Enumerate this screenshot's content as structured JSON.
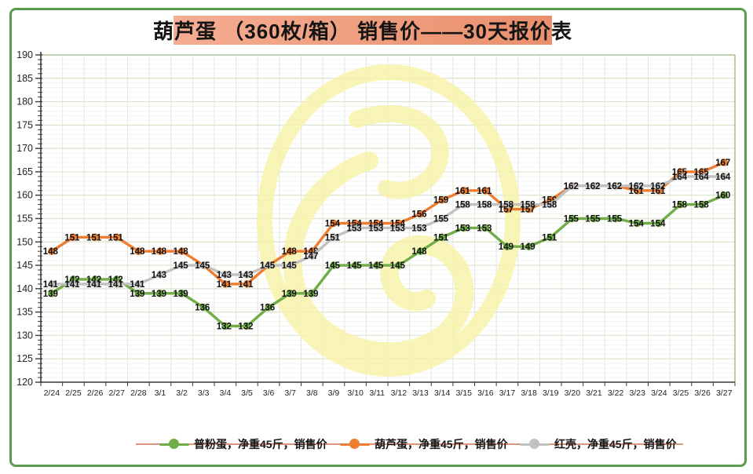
{
  "title": "葫芦蛋 （360枚/箱） 销售价——30天报价表",
  "chart_data": {
    "type": "line",
    "x": [
      "2/24",
      "2/25",
      "2/26",
      "2/27",
      "2/28",
      "3/1",
      "3/2",
      "3/3",
      "3/4",
      "3/5",
      "3/6",
      "3/7",
      "3/8",
      "3/9",
      "3/10",
      "3/11",
      "3/12",
      "3/13",
      "3/14",
      "3/15",
      "3/16",
      "3/17",
      "3/18",
      "3/19",
      "3/20",
      "3/21",
      "3/22",
      "3/23",
      "3/24",
      "3/25",
      "3/26",
      "3/27"
    ],
    "ylim": [
      120,
      190
    ],
    "ytick_step": 5,
    "grid": true,
    "data_labels": true,
    "legend_position": "bottom",
    "series": [
      {
        "name": "普粉蛋，净重45斤，销售价",
        "color": "#70ad47",
        "values": [
          139,
          142,
          142,
          142,
          139,
          139,
          139,
          136,
          132,
          132,
          136,
          139,
          139,
          145,
          145,
          145,
          145,
          148,
          151,
          153,
          153,
          149,
          149,
          151,
          155,
          155,
          155,
          154,
          154,
          158,
          158,
          160
        ]
      },
      {
        "name": "葫芦蛋，净重45斤，销售价",
        "color": "#ed7d31",
        "values": [
          148,
          151,
          151,
          151,
          148,
          148,
          148,
          145,
          141,
          141,
          145,
          148,
          148,
          154,
          154,
          154,
          154,
          156,
          159,
          161,
          161,
          157,
          157,
          159,
          162,
          162,
          162,
          161,
          161,
          165,
          165,
          167
        ]
      },
      {
        "name": "红壳，净重45斤，销售价",
        "color": "#c1c1c1",
        "values": [
          141,
          141,
          141,
          141,
          141,
          143,
          145,
          145,
          143,
          143,
          145,
          145,
          147,
          151,
          153,
          153,
          153,
          153,
          155,
          158,
          158,
          158,
          158,
          158,
          162,
          162,
          162,
          162,
          162,
          164,
          164,
          164
        ]
      }
    ]
  },
  "colors": {
    "title_bg_left": "#f5ad92",
    "title_bg_right": "#ea8f6d",
    "frame_border": "#5d9c4e",
    "legend_rule": "#df957a",
    "watermark": "#f8f3ab",
    "axis": "#3a3a3a",
    "grid_major": "#d9e5ce",
    "grid_minor": "#f4f4f1",
    "grid_vertical": "#e2e8dc",
    "plot_border": "#abc493",
    "label_text": "#111111"
  }
}
